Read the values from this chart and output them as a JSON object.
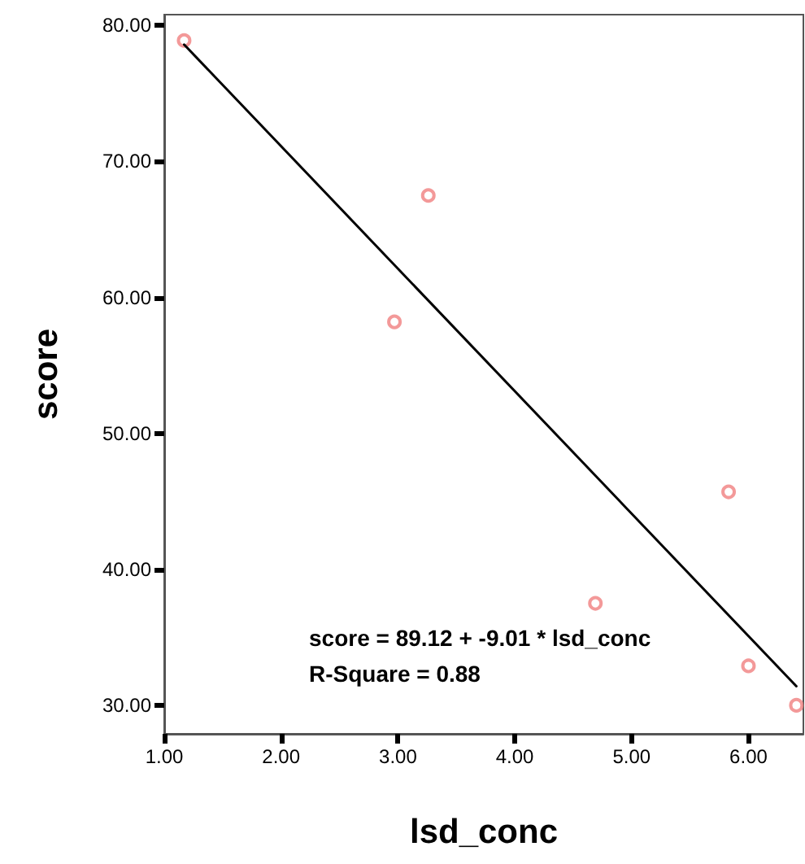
{
  "chart_data": {
    "type": "scatter",
    "xlabel": "lsd_conc",
    "ylabel": "score",
    "series": [
      {
        "color": "#f08080",
        "marker": "circle",
        "x": [
          1.17,
          2.97,
          3.26,
          4.69,
          5.83,
          6.0,
          6.41
        ],
        "values": [
          78.9,
          58.2,
          67.5,
          37.5,
          45.7,
          32.9,
          30.0
        ]
      },
      {
        "type": "line",
        "color": "#000000",
        "marker": "none",
        "x": [
          1.17,
          6.41
        ],
        "values": [
          78.6,
          31.4
        ]
      }
    ],
    "xlim": [
      1,
      6.47
    ],
    "ylim": [
      27.9,
      80.8
    ],
    "xticks": [
      {
        "value": 1,
        "label": "1.00"
      },
      {
        "value": 2,
        "label": "2.00"
      },
      {
        "value": 3,
        "label": "3.00"
      },
      {
        "value": 4,
        "label": "4.00"
      },
      {
        "value": 5,
        "label": "5.00"
      },
      {
        "value": 6,
        "label": "6.00"
      }
    ],
    "yticks": [
      {
        "value": 30,
        "label": "30.00"
      },
      {
        "value": 40,
        "label": "40.00"
      },
      {
        "value": 50,
        "label": "50.00"
      },
      {
        "value": 60,
        "label": "60.00"
      },
      {
        "value": 70,
        "label": "70.00"
      },
      {
        "value": 80,
        "label": "80.00"
      }
    ],
    "annotations": [
      "score = 89.12 + -9.01 * lsd_conc",
      "R-Square = 0.88"
    ],
    "grid": false
  }
}
